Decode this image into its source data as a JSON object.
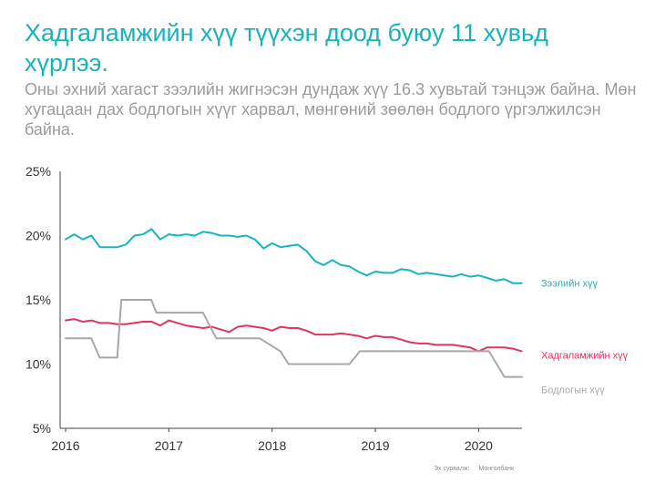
{
  "title": "Хадгаламжийн хүү түүхэн доод буюу 11 хувьд хүрлээ.",
  "subtitle": "Оны эхний хагаст зээлийн жигнэсэн дундаж хүү 16.3 хувьтай тэнцэж байна. Мөн хугацаан дах бодлогын хүүг харвал, мөнгөний зөөлөн бодлого үргэлжилсэн байна.",
  "source": {
    "label": "Эх сурвалж:",
    "value": "Монголбанк"
  },
  "colors": {
    "loan": "#17b5c0",
    "deposit": "#e0365e",
    "policy": "#a8a8a8",
    "axis": "#444444",
    "tick_text": "#333333"
  },
  "chart_data": {
    "type": "line",
    "ylim": [
      5,
      25
    ],
    "xlim": [
      2016,
      2020.42
    ],
    "yticks": [
      "5%",
      "10%",
      "15%",
      "20%",
      "25%"
    ],
    "ytick_values": [
      5,
      10,
      15,
      20,
      25
    ],
    "xticks": [
      "2016",
      "2017",
      "2018",
      "2019",
      "2020"
    ],
    "xtick_values": [
      2016,
      2017,
      2018,
      2019,
      2020
    ],
    "grid": false,
    "legend": "right, inline labels at line ends",
    "series": [
      {
        "name": "Зээлийн хүү",
        "color": "#17b5c0",
        "x": [
          2016,
          2016.083,
          2016.167,
          2016.25,
          2016.333,
          2016.417,
          2016.5,
          2016.583,
          2016.667,
          2016.75,
          2016.833,
          2016.917,
          2017,
          2017.083,
          2017.167,
          2017.25,
          2017.333,
          2017.417,
          2017.5,
          2017.583,
          2017.667,
          2017.75,
          2017.833,
          2017.917,
          2018,
          2018.083,
          2018.167,
          2018.25,
          2018.333,
          2018.417,
          2018.5,
          2018.583,
          2018.667,
          2018.75,
          2018.833,
          2018.917,
          2019,
          2019.083,
          2019.167,
          2019.25,
          2019.333,
          2019.417,
          2019.5,
          2019.583,
          2019.667,
          2019.75,
          2019.833,
          2019.917,
          2020,
          2020.083,
          2020.167,
          2020.25,
          2020.333,
          2020.417
        ],
        "values": [
          19.7,
          20.1,
          19.7,
          20.0,
          19.1,
          19.1,
          19.1,
          19.3,
          20.0,
          20.1,
          20.5,
          19.7,
          20.1,
          20.0,
          20.1,
          20.0,
          20.3,
          20.2,
          20.0,
          20.0,
          19.9,
          20.0,
          19.7,
          19.0,
          19.4,
          19.1,
          19.2,
          19.3,
          18.8,
          18.0,
          17.7,
          18.1,
          17.7,
          17.6,
          17.2,
          16.9,
          17.2,
          17.1,
          17.1,
          17.4,
          17.3,
          17.0,
          17.1,
          17.0,
          16.9,
          16.8,
          17.0,
          16.8,
          16.9,
          16.7,
          16.5,
          16.6,
          16.3,
          16.3
        ]
      },
      {
        "name": "Хадгаламжийн хүү",
        "color": "#e0365e",
        "x": [
          2016,
          2016.083,
          2016.167,
          2016.25,
          2016.333,
          2016.417,
          2016.5,
          2016.583,
          2016.667,
          2016.75,
          2016.833,
          2016.917,
          2017,
          2017.083,
          2017.167,
          2017.25,
          2017.333,
          2017.417,
          2017.5,
          2017.583,
          2017.667,
          2017.75,
          2017.833,
          2017.917,
          2018,
          2018.083,
          2018.167,
          2018.25,
          2018.333,
          2018.417,
          2018.5,
          2018.583,
          2018.667,
          2018.75,
          2018.833,
          2018.917,
          2019,
          2019.083,
          2019.167,
          2019.25,
          2019.333,
          2019.417,
          2019.5,
          2019.583,
          2019.667,
          2019.75,
          2019.833,
          2019.917,
          2020,
          2020.083,
          2020.167,
          2020.25,
          2020.333,
          2020.417
        ],
        "values": [
          13.4,
          13.5,
          13.3,
          13.4,
          13.2,
          13.2,
          13.1,
          13.1,
          13.2,
          13.3,
          13.3,
          13.0,
          13.4,
          13.2,
          13.0,
          12.9,
          12.8,
          12.9,
          12.7,
          12.5,
          12.9,
          13.0,
          12.9,
          12.8,
          12.6,
          12.9,
          12.8,
          12.8,
          12.6,
          12.3,
          12.3,
          12.3,
          12.4,
          12.3,
          12.2,
          12.0,
          12.2,
          12.1,
          12.1,
          11.9,
          11.7,
          11.6,
          11.6,
          11.5,
          11.5,
          11.5,
          11.4,
          11.3,
          11.0,
          11.3,
          11.3,
          11.3,
          11.2,
          11.0
        ]
      },
      {
        "name": "Бодлогын хүү",
        "color": "#a8a8a8",
        "x": [
          2016,
          2016.25,
          2016.33,
          2016.5,
          2016.54,
          2016.83,
          2016.88,
          2017.33,
          2017.46,
          2017.88,
          2018.08,
          2018.16,
          2018.75,
          2018.85,
          2019.0,
          2020.1,
          2020.25,
          2020.42
        ],
        "values": [
          12,
          12,
          10.5,
          10.5,
          15,
          15,
          14,
          14,
          12,
          12,
          11,
          10,
          10,
          11,
          11,
          11,
          9,
          9
        ]
      }
    ]
  }
}
